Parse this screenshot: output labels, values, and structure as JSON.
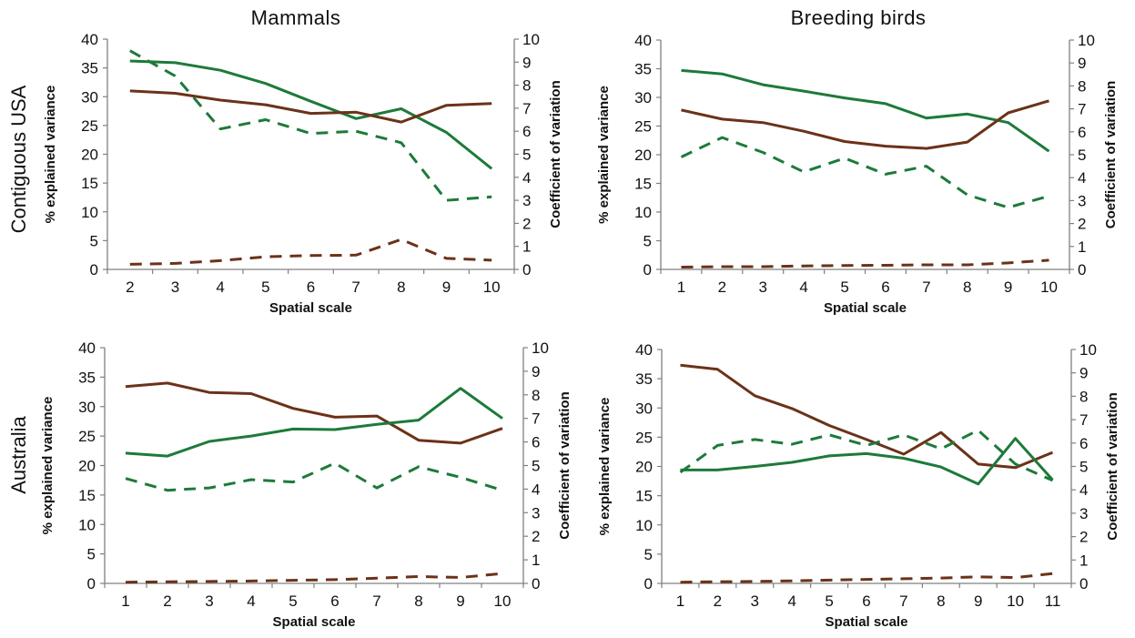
{
  "columns": [
    "Mammals",
    "Breeding  birds"
  ],
  "rows": [
    "Contiguous USA",
    "Australia"
  ],
  "colors": {
    "green": "#1d7a3a",
    "brown": "#6b3219"
  },
  "chart_data": [
    {
      "type": "line",
      "column": "Mammals",
      "row": "Contiguous USA",
      "xlabel": "Spatial scale",
      "ylabel": "% explained variance",
      "y2label": "Coefficient of variation",
      "x": [
        2,
        3,
        4,
        5,
        6,
        7,
        8,
        9,
        10
      ],
      "ylim": [
        0,
        40
      ],
      "y2lim": [
        0,
        10
      ],
      "yticks": [
        "0",
        "5",
        "10",
        "15",
        "20",
        "25",
        "30",
        "35",
        "40"
      ],
      "y2ticks": [
        "0",
        "1",
        "2",
        "3",
        "4",
        "5",
        "6",
        "7",
        "8",
        "9",
        "10"
      ],
      "xticks": [
        "2",
        "3",
        "4",
        "5",
        "6",
        "7",
        "8",
        "9",
        "10"
      ],
      "series": [
        {
          "axis": "left",
          "color": "#1d7a3a",
          "dash": false,
          "values": [
            36.2,
            35.9,
            34.6,
            32.3,
            29.2,
            26.2,
            27.9,
            23.8,
            17.5
          ]
        },
        {
          "axis": "left",
          "color": "#6b3219",
          "dash": false,
          "values": [
            31.0,
            30.6,
            29.4,
            28.6,
            27.1,
            27.3,
            25.6,
            28.5,
            28.8
          ]
        },
        {
          "axis": "right",
          "color": "#1d7a3a",
          "dash": true,
          "values": [
            9.5,
            8.4,
            6.1,
            6.5,
            5.9,
            6.0,
            5.5,
            3.0,
            3.15
          ]
        },
        {
          "axis": "right",
          "color": "#6b3219",
          "dash": true,
          "values": [
            0.22,
            0.26,
            0.38,
            0.55,
            0.6,
            0.62,
            1.3,
            0.48,
            0.4
          ]
        }
      ]
    },
    {
      "type": "line",
      "column": "Breeding  birds",
      "row": "Contiguous USA",
      "xlabel": "Spatial scale",
      "ylabel": "% explained variance",
      "y2label": "Coefficient of variation",
      "x": [
        1,
        2,
        3,
        4,
        5,
        6,
        7,
        8,
        9,
        10
      ],
      "ylim": [
        0,
        40
      ],
      "y2lim": [
        0,
        10
      ],
      "yticks": [
        "0",
        "5",
        "10",
        "15",
        "20",
        "25",
        "30",
        "35",
        "40"
      ],
      "y2ticks": [
        "0",
        "1",
        "2",
        "3",
        "4",
        "5",
        "6",
        "7",
        "8",
        "9",
        "10"
      ],
      "xticks": [
        "1",
        "2",
        "3",
        "4",
        "5",
        "6",
        "7",
        "8",
        "9",
        "10"
      ],
      "series": [
        {
          "axis": "left",
          "color": "#1d7a3a",
          "dash": false,
          "values": [
            34.7,
            34.1,
            32.2,
            31.1,
            29.9,
            28.9,
            26.4,
            27.1,
            25.6,
            20.6
          ]
        },
        {
          "axis": "left",
          "color": "#6b3219",
          "dash": false,
          "values": [
            27.8,
            26.2,
            25.6,
            24.1,
            22.3,
            21.5,
            21.1,
            22.2,
            27.3,
            29.4
          ]
        },
        {
          "axis": "right",
          "color": "#1d7a3a",
          "dash": true,
          "values": [
            4.9,
            5.75,
            5.1,
            4.25,
            4.85,
            4.15,
            4.5,
            3.25,
            2.7,
            3.2
          ]
        },
        {
          "axis": "right",
          "color": "#6b3219",
          "dash": true,
          "values": [
            0.1,
            0.12,
            0.12,
            0.15,
            0.17,
            0.18,
            0.2,
            0.2,
            0.28,
            0.4
          ]
        }
      ]
    },
    {
      "type": "line",
      "column": "Mammals",
      "row": "Australia",
      "xlabel": "Spatial scale",
      "ylabel": "% explained variance",
      "y2label": "Coefficient of variation",
      "x": [
        1,
        2,
        3,
        4,
        5,
        6,
        7,
        8,
        9,
        10
      ],
      "ylim": [
        0,
        40
      ],
      "y2lim": [
        0,
        10
      ],
      "yticks": [
        "0",
        "5",
        "10",
        "15",
        "20",
        "25",
        "30",
        "35",
        "40"
      ],
      "y2ticks": [
        "0",
        "1",
        "2",
        "3",
        "4",
        "5",
        "6",
        "7",
        "8",
        "9",
        "10"
      ],
      "xticks": [
        "1",
        "2",
        "3",
        "4",
        "5",
        "6",
        "7",
        "8",
        "9",
        "10"
      ],
      "series": [
        {
          "axis": "left",
          "color": "#6b3219",
          "dash": false,
          "values": [
            33.4,
            34.0,
            32.4,
            32.2,
            29.7,
            28.2,
            28.4,
            24.3,
            23.8,
            26.3
          ]
        },
        {
          "axis": "left",
          "color": "#1d7a3a",
          "dash": false,
          "values": [
            22.1,
            21.6,
            24.1,
            25.0,
            26.2,
            26.1,
            27.0,
            27.7,
            33.1,
            28.0
          ]
        },
        {
          "axis": "right",
          "color": "#1d7a3a",
          "dash": true,
          "values": [
            4.45,
            3.95,
            4.05,
            4.4,
            4.3,
            5.1,
            4.05,
            4.95,
            4.5,
            3.95
          ]
        },
        {
          "axis": "right",
          "color": "#6b3219",
          "dash": true,
          "values": [
            0.05,
            0.07,
            0.08,
            0.1,
            0.13,
            0.16,
            0.22,
            0.29,
            0.25,
            0.42
          ]
        }
      ]
    },
    {
      "type": "line",
      "column": "Breeding  birds",
      "row": "Australia",
      "xlabel": "Spatial scale",
      "ylabel": "% explained variance",
      "y2label": "Coefficient of variation",
      "x": [
        1,
        2,
        3,
        4,
        5,
        6,
        7,
        8,
        9,
        10,
        11
      ],
      "ylim": [
        0,
        40
      ],
      "y2lim": [
        0,
        10
      ],
      "yticks": [
        "0",
        "5",
        "10",
        "15",
        "20",
        "25",
        "30",
        "35",
        "40"
      ],
      "y2ticks": [
        "0",
        "1",
        "2",
        "3",
        "4",
        "5",
        "6",
        "7",
        "8",
        "9",
        "10"
      ],
      "xticks": [
        "1",
        "2",
        "3",
        "4",
        "5",
        "6",
        "7",
        "8",
        "9",
        "10",
        "11"
      ],
      "series": [
        {
          "axis": "left",
          "color": "#6b3219",
          "dash": false,
          "values": [
            37.3,
            36.6,
            32.1,
            29.9,
            27.0,
            24.6,
            22.1,
            25.8,
            20.4,
            19.8,
            22.4
          ]
        },
        {
          "axis": "left",
          "color": "#1d7a3a",
          "dash": false,
          "values": [
            19.4,
            19.4,
            20.0,
            20.7,
            21.8,
            22.2,
            21.4,
            19.9,
            17.0,
            24.8,
            17.7
          ]
        },
        {
          "axis": "right",
          "color": "#1d7a3a",
          "dash": true,
          "values": [
            4.75,
            5.9,
            6.15,
            5.95,
            6.35,
            5.9,
            6.35,
            5.75,
            6.55,
            5.1,
            4.4
          ]
        },
        {
          "axis": "right",
          "color": "#6b3219",
          "dash": true,
          "values": [
            0.05,
            0.07,
            0.08,
            0.11,
            0.14,
            0.17,
            0.2,
            0.23,
            0.28,
            0.25,
            0.42
          ]
        }
      ]
    }
  ]
}
